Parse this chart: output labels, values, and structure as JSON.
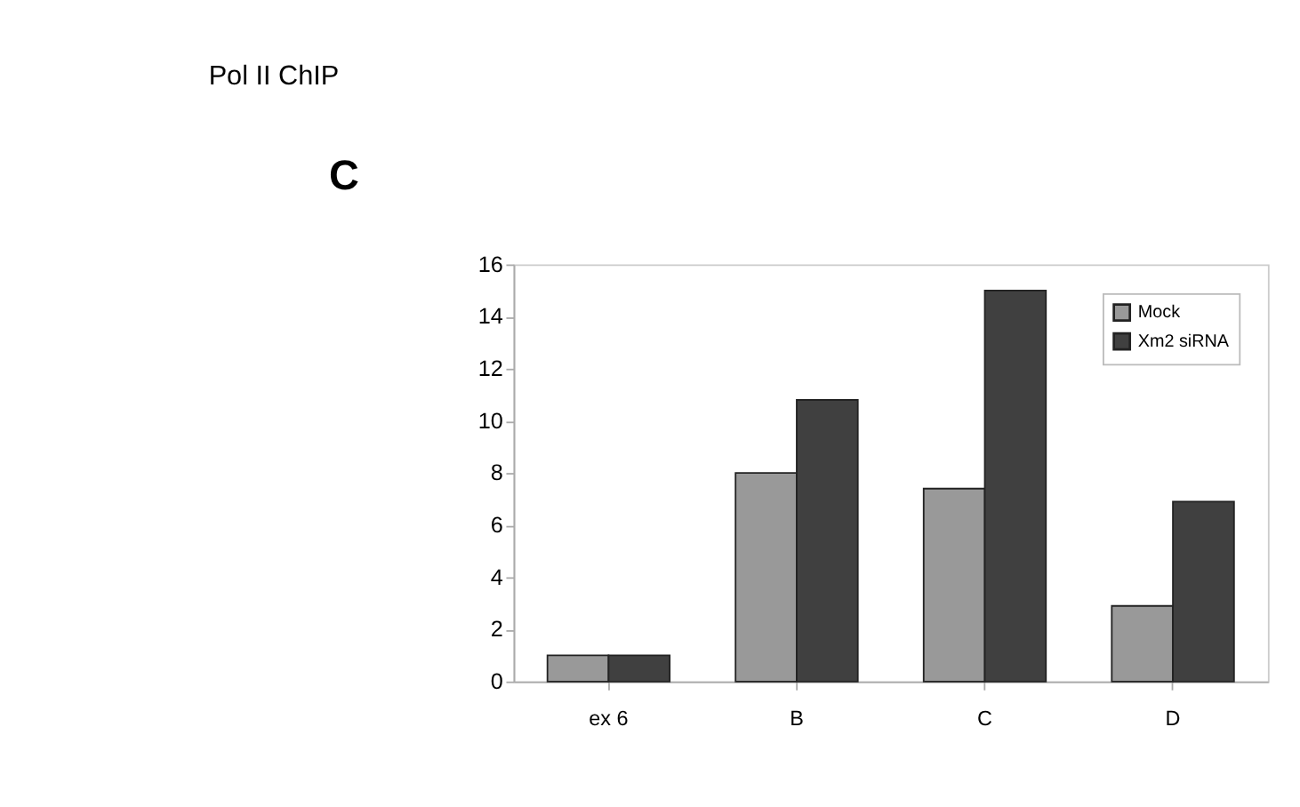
{
  "chart_data": {
    "type": "bar",
    "title": "Pol II ChIP",
    "annotations": [
      "C"
    ],
    "categories": [
      "ex 6",
      "B",
      "C",
      "D"
    ],
    "series": [
      {
        "name": "Mock",
        "color": "#999999",
        "values": [
          1,
          8,
          7.4,
          2.9
        ]
      },
      {
        "name": "Xm2 siRNA",
        "color": "#404040",
        "values": [
          1,
          10.8,
          15,
          6.9
        ]
      }
    ],
    "ylim": [
      0,
      16
    ],
    "yticks": [
      0,
      2,
      4,
      6,
      8,
      10,
      12,
      14,
      16
    ],
    "grid": false,
    "legend": "top right"
  }
}
